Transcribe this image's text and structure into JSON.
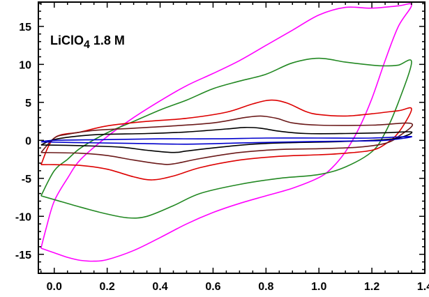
{
  "chart_data": {
    "type": "line",
    "title": "",
    "xlabel": "",
    "ylabel": "",
    "xlim": [
      -0.06,
      1.4
    ],
    "ylim": [
      -17.5,
      18.2
    ],
    "xticks": [
      0.0,
      0.2,
      0.4,
      0.6,
      0.8,
      1.0,
      1.2,
      1.4
    ],
    "xtick_labels": [
      "0.0",
      "0.2",
      "0.4",
      "0.6",
      "0.8",
      "1.0",
      "1.2",
      "1.4"
    ],
    "yticks": [
      -15,
      -10,
      -5,
      0,
      5,
      10,
      15
    ],
    "ytick_labels": [
      "-15",
      "-10",
      "-5",
      "0",
      "5",
      "10",
      "15"
    ],
    "grid": false,
    "legend": "none",
    "annotation": {
      "main": "LiClO",
      "subscript": "4",
      "suffix": " 1.8 M"
    },
    "series": [
      {
        "color": "#ff00ff",
        "points": [
          [
            -0.05,
            -14.2
          ],
          [
            0.0,
            -14.8
          ],
          [
            0.05,
            -15.4
          ],
          [
            0.1,
            -15.8
          ],
          [
            0.15,
            -15.9
          ],
          [
            0.2,
            -15.7
          ],
          [
            0.3,
            -14.5
          ],
          [
            0.4,
            -12.8
          ],
          [
            0.5,
            -11.0
          ],
          [
            0.6,
            -9.5
          ],
          [
            0.7,
            -8.3
          ],
          [
            0.8,
            -7.3
          ],
          [
            0.9,
            -6.3
          ],
          [
            1.0,
            -4.9
          ],
          [
            1.05,
            -3.6
          ],
          [
            1.1,
            -1.5
          ],
          [
            1.15,
            1.5
          ],
          [
            1.2,
            5.5
          ],
          [
            1.25,
            10.5
          ],
          [
            1.3,
            15.0
          ],
          [
            1.35,
            17.8
          ],
          [
            1.3,
            17.7
          ],
          [
            1.2,
            17.4
          ],
          [
            1.1,
            17.5
          ],
          [
            1.0,
            16.5
          ],
          [
            0.9,
            14.5
          ],
          [
            0.8,
            12.5
          ],
          [
            0.7,
            10.5
          ],
          [
            0.6,
            8.8
          ],
          [
            0.5,
            7.2
          ],
          [
            0.4,
            5.2
          ],
          [
            0.3,
            3.0
          ],
          [
            0.2,
            0.5
          ],
          [
            0.1,
            -2.5
          ],
          [
            0.05,
            -5.0
          ],
          [
            0.0,
            -8.0
          ],
          [
            -0.03,
            -11.5
          ],
          [
            -0.05,
            -14.2
          ]
        ]
      },
      {
        "color": "#228822",
        "points": [
          [
            -0.05,
            -7.3
          ],
          [
            0.0,
            -7.8
          ],
          [
            0.1,
            -8.8
          ],
          [
            0.2,
            -9.7
          ],
          [
            0.28,
            -10.2
          ],
          [
            0.35,
            -10.0
          ],
          [
            0.45,
            -8.6
          ],
          [
            0.55,
            -7.0
          ],
          [
            0.7,
            -5.8
          ],
          [
            0.85,
            -5.0
          ],
          [
            1.0,
            -4.5
          ],
          [
            1.1,
            -3.5
          ],
          [
            1.2,
            -1.5
          ],
          [
            1.25,
            1.0
          ],
          [
            1.3,
            5.0
          ],
          [
            1.35,
            10.3
          ],
          [
            1.3,
            9.9
          ],
          [
            1.25,
            9.8
          ],
          [
            1.2,
            9.9
          ],
          [
            1.1,
            10.3
          ],
          [
            1.0,
            10.8
          ],
          [
            0.9,
            10.2
          ],
          [
            0.8,
            8.7
          ],
          [
            0.7,
            7.8
          ],
          [
            0.6,
            6.8
          ],
          [
            0.5,
            5.3
          ],
          [
            0.4,
            4.0
          ],
          [
            0.3,
            2.5
          ],
          [
            0.2,
            1.0
          ],
          [
            0.1,
            -1.0
          ],
          [
            0.05,
            -2.5
          ],
          [
            0.0,
            -4.0
          ],
          [
            -0.05,
            -7.3
          ]
        ]
      },
      {
        "color": "#dd0000",
        "points": [
          [
            -0.05,
            -3.2
          ],
          [
            0.0,
            -3.2
          ],
          [
            0.1,
            -3.3
          ],
          [
            0.2,
            -3.8
          ],
          [
            0.3,
            -4.8
          ],
          [
            0.37,
            -5.2
          ],
          [
            0.45,
            -4.7
          ],
          [
            0.55,
            -3.6
          ],
          [
            0.7,
            -2.6
          ],
          [
            0.85,
            -2.1
          ],
          [
            1.0,
            -1.9
          ],
          [
            1.1,
            -1.7
          ],
          [
            1.2,
            -1.3
          ],
          [
            1.25,
            -0.5
          ],
          [
            1.3,
            1.0
          ],
          [
            1.35,
            4.1
          ],
          [
            1.3,
            3.9
          ],
          [
            1.2,
            3.5
          ],
          [
            1.1,
            3.2
          ],
          [
            1.0,
            3.4
          ],
          [
            0.95,
            3.8
          ],
          [
            0.88,
            4.9
          ],
          [
            0.82,
            5.3
          ],
          [
            0.75,
            4.8
          ],
          [
            0.65,
            3.7
          ],
          [
            0.5,
            2.9
          ],
          [
            0.35,
            2.5
          ],
          [
            0.2,
            1.9
          ],
          [
            0.1,
            1.1
          ],
          [
            0.0,
            0.3
          ],
          [
            -0.05,
            -3.2
          ]
        ]
      },
      {
        "color": "#6b1a1a",
        "points": [
          [
            -0.05,
            -1.6
          ],
          [
            0.1,
            -1.7
          ],
          [
            0.2,
            -2.0
          ],
          [
            0.3,
            -2.6
          ],
          [
            0.4,
            -3.1
          ],
          [
            0.45,
            -3.1
          ],
          [
            0.55,
            -2.4
          ],
          [
            0.7,
            -1.6
          ],
          [
            0.85,
            -1.2
          ],
          [
            1.0,
            -1.1
          ],
          [
            1.15,
            -0.9
          ],
          [
            1.25,
            -0.4
          ],
          [
            1.3,
            0.5
          ],
          [
            1.35,
            2.2
          ],
          [
            1.2,
            2.0
          ],
          [
            1.0,
            2.0
          ],
          [
            0.9,
            2.3
          ],
          [
            0.84,
            2.9
          ],
          [
            0.78,
            3.2
          ],
          [
            0.72,
            3.0
          ],
          [
            0.6,
            2.3
          ],
          [
            0.45,
            1.9
          ],
          [
            0.3,
            1.6
          ],
          [
            0.15,
            1.3
          ],
          [
            0.05,
            0.8
          ],
          [
            0.0,
            0.3
          ],
          [
            -0.05,
            -1.6
          ]
        ]
      },
      {
        "color": "#000000",
        "points": [
          [
            -0.05,
            -0.6
          ],
          [
            0.1,
            -0.7
          ],
          [
            0.25,
            -0.9
          ],
          [
            0.35,
            -1.3
          ],
          [
            0.45,
            -1.6
          ],
          [
            0.5,
            -1.4
          ],
          [
            0.6,
            -1.0
          ],
          [
            0.75,
            -0.5
          ],
          [
            0.9,
            -0.3
          ],
          [
            1.05,
            -0.2
          ],
          [
            1.2,
            0.0
          ],
          [
            1.3,
            0.3
          ],
          [
            1.35,
            1.1
          ],
          [
            1.25,
            1.0
          ],
          [
            1.1,
            0.9
          ],
          [
            0.95,
            0.9
          ],
          [
            0.85,
            1.2
          ],
          [
            0.78,
            1.6
          ],
          [
            0.72,
            1.7
          ],
          [
            0.65,
            1.5
          ],
          [
            0.5,
            1.1
          ],
          [
            0.35,
            0.9
          ],
          [
            0.2,
            0.8
          ],
          [
            0.1,
            0.6
          ],
          [
            0.0,
            0.1
          ],
          [
            -0.05,
            -0.6
          ]
        ]
      },
      {
        "color": "#0000cc",
        "points": [
          [
            -0.05,
            -0.2
          ],
          [
            0.1,
            -0.3
          ],
          [
            0.3,
            -0.4
          ],
          [
            0.5,
            -0.5
          ],
          [
            0.7,
            -0.35
          ],
          [
            0.9,
            -0.2
          ],
          [
            1.1,
            -0.1
          ],
          [
            1.25,
            0.0
          ],
          [
            1.35,
            0.5
          ],
          [
            1.2,
            0.3
          ],
          [
            1.0,
            0.3
          ],
          [
            0.8,
            0.3
          ],
          [
            0.6,
            0.2
          ],
          [
            0.4,
            0.2
          ],
          [
            0.2,
            0.1
          ],
          [
            0.0,
            0.0
          ],
          [
            -0.05,
            -0.2
          ]
        ]
      }
    ]
  }
}
